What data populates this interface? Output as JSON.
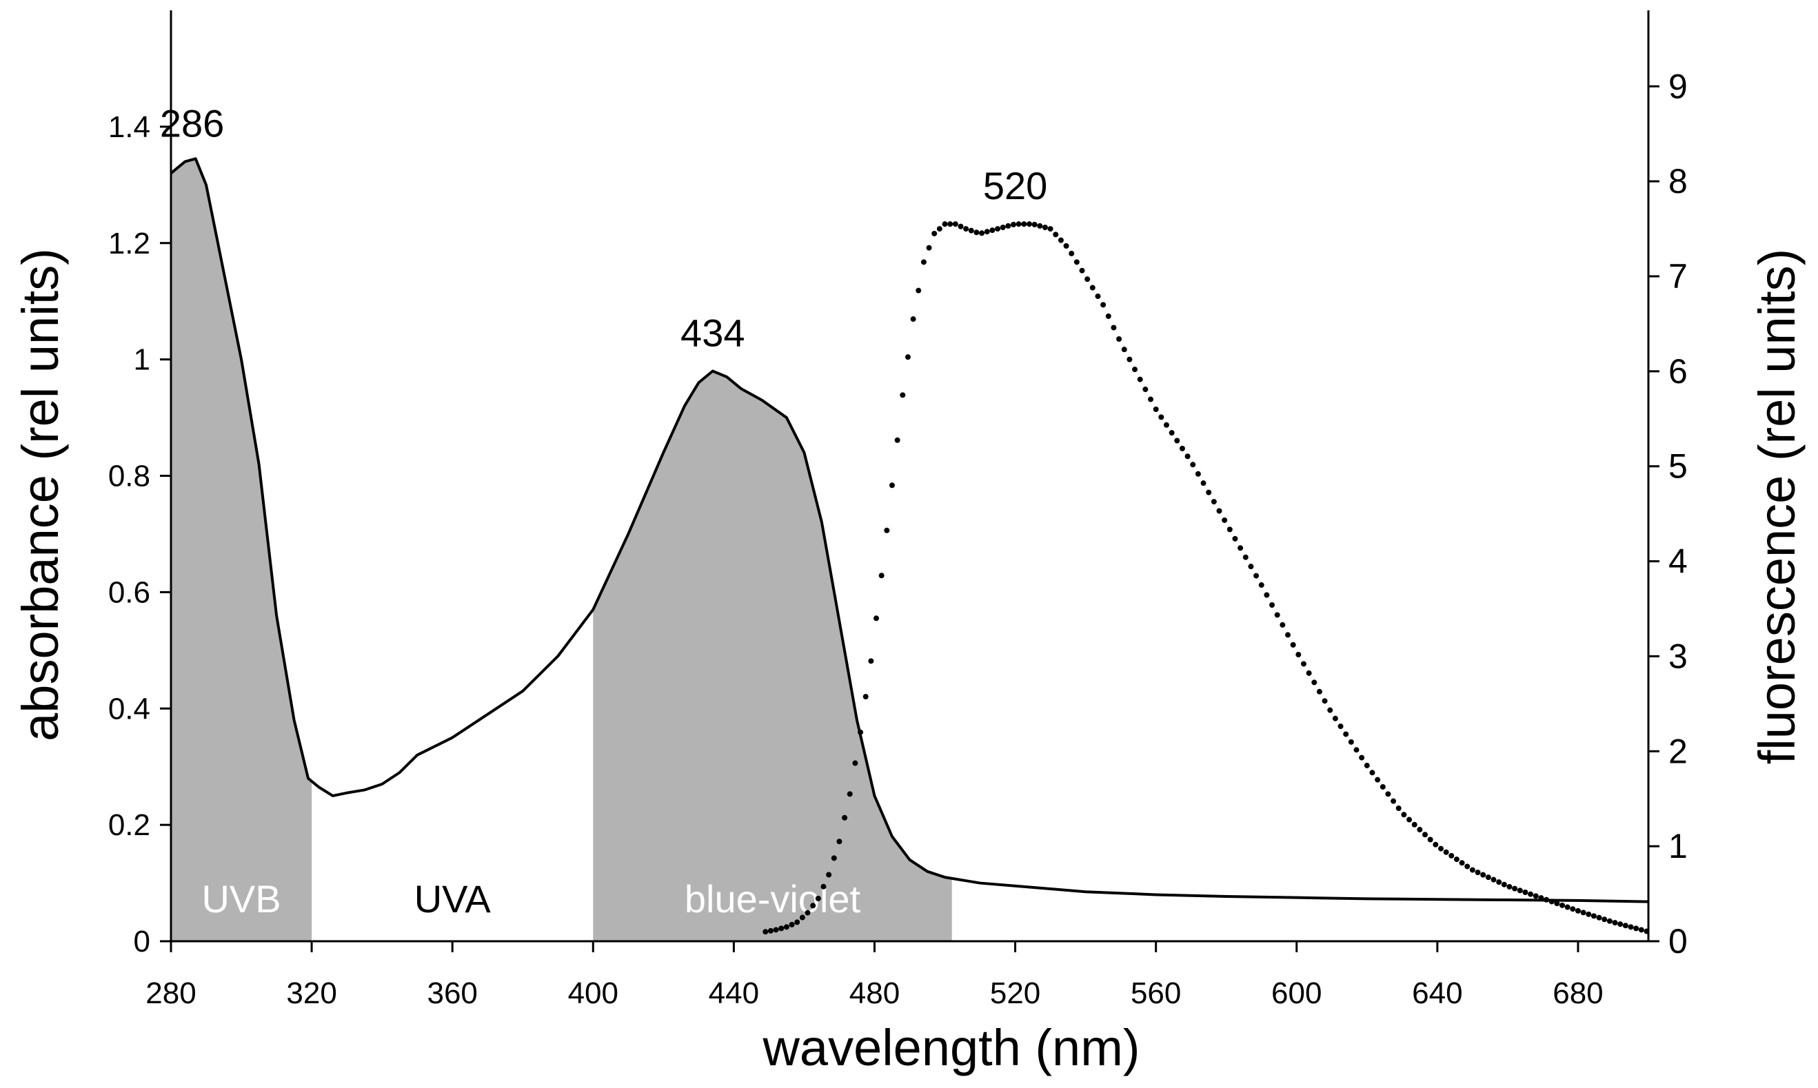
{
  "chart_data": {
    "type": "line",
    "title": "",
    "xlabel": "wavelength (nm)",
    "ylabel_left": "absorbance (rel units)",
    "ylabel_right": "fluorescence (rel units)",
    "xlim": [
      280,
      700
    ],
    "ylim_left": [
      0,
      1.6
    ],
    "ylim_right": [
      0,
      9.8
    ],
    "x_ticks": [
      280,
      320,
      360,
      400,
      440,
      480,
      520,
      560,
      600,
      640,
      680
    ],
    "y_left_ticks": [
      {
        "value": 0,
        "label": "0"
      },
      {
        "value": 0.2,
        "label": "0.2"
      },
      {
        "value": 0.4,
        "label": "0.4"
      },
      {
        "value": 0.6,
        "label": "0.6"
      },
      {
        "value": 0.8,
        "label": "0.8"
      },
      {
        "value": 1.0,
        "label": "1"
      },
      {
        "value": 1.2,
        "label": "1.2"
      },
      {
        "value": 1.4,
        "label": "1.4"
      }
    ],
    "y_right_ticks": [
      0,
      1,
      2,
      3,
      4,
      5,
      6,
      7,
      8,
      9
    ],
    "grid": false,
    "shaded_regions": [
      {
        "name": "UVB",
        "from": 280,
        "to": 320,
        "color": "#b3b3b3",
        "text_color": "#ffffff"
      },
      {
        "name": "UVA",
        "from": 320,
        "to": 400,
        "color": "none",
        "text_color": "#000000"
      },
      {
        "name": "blue-violet",
        "from": 400,
        "to": 502,
        "color": "#b3b3b3",
        "text_color": "#ffffff"
      }
    ],
    "annotations": [
      {
        "text": "286",
        "x": 286,
        "y": 1.34,
        "axis": "left"
      },
      {
        "text": "434",
        "x": 434,
        "y": 0.98,
        "axis": "left"
      },
      {
        "text": "520",
        "x": 520,
        "y": 7.55,
        "axis": "right"
      }
    ],
    "series": [
      {
        "name": "absorbance",
        "axis": "left",
        "style": "solid",
        "color": "#000000",
        "x": [
          280,
          284,
          287,
          290,
          295,
          300,
          305,
          310,
          315,
          319,
          322,
          326,
          330,
          335,
          340,
          345,
          350,
          360,
          370,
          380,
          390,
          400,
          410,
          420,
          426,
          430,
          434,
          438,
          442,
          448,
          455,
          460,
          465,
          470,
          475,
          480,
          485,
          490,
          495,
          500,
          505,
          510,
          520,
          530,
          540,
          560,
          580,
          600,
          620,
          640,
          660,
          680,
          700
        ],
        "y": [
          1.32,
          1.34,
          1.345,
          1.3,
          1.15,
          1.0,
          0.82,
          0.56,
          0.38,
          0.28,
          0.265,
          0.25,
          0.255,
          0.26,
          0.27,
          0.29,
          0.32,
          0.35,
          0.39,
          0.43,
          0.49,
          0.57,
          0.7,
          0.84,
          0.92,
          0.96,
          0.98,
          0.97,
          0.95,
          0.93,
          0.9,
          0.84,
          0.72,
          0.55,
          0.38,
          0.25,
          0.18,
          0.14,
          0.12,
          0.11,
          0.105,
          0.1,
          0.095,
          0.09,
          0.085,
          0.08,
          0.077,
          0.075,
          0.073,
          0.072,
          0.071,
          0.07,
          0.068
        ]
      },
      {
        "name": "fluorescence",
        "axis": "right",
        "style": "dotted",
        "color": "#000000",
        "x": [
          449,
          452,
          455,
          458,
          461,
          464,
          467,
          470,
          473,
          476,
          479,
          482,
          485,
          488,
          491,
          494,
          497,
          500,
          503,
          506,
          510,
          515,
          520,
          525,
          530,
          535,
          540,
          545,
          550,
          555,
          560,
          570,
          580,
          590,
          600,
          610,
          620,
          630,
          640,
          650,
          660,
          670,
          680,
          690,
          700
        ],
        "y": [
          0.1,
          0.12,
          0.15,
          0.2,
          0.3,
          0.45,
          0.7,
          1.05,
          1.55,
          2.2,
          2.95,
          3.85,
          4.8,
          5.75,
          6.55,
          7.15,
          7.45,
          7.55,
          7.55,
          7.5,
          7.45,
          7.5,
          7.55,
          7.55,
          7.5,
          7.3,
          7.0,
          6.7,
          6.3,
          5.95,
          5.6,
          5.05,
          4.4,
          3.75,
          3.05,
          2.4,
          1.85,
          1.35,
          1.0,
          0.75,
          0.58,
          0.45,
          0.32,
          0.2,
          0.1
        ]
      }
    ]
  }
}
